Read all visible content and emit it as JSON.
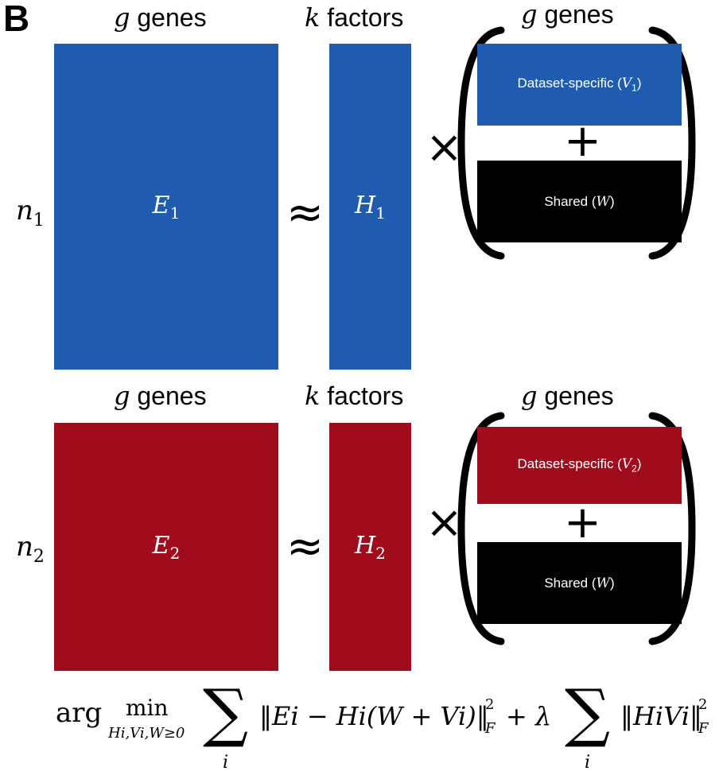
{
  "panel_label": "B",
  "columns": {
    "genes_var": "g",
    "genes_word": "genes",
    "factors_var": "k",
    "factors_word": "factors"
  },
  "rows": [
    {
      "n_var": "n",
      "n_sub": "1",
      "E_var": "E",
      "E_sub": "1",
      "H_var": "H",
      "H_sub": "1",
      "specific_text": "Dataset-specific (",
      "specific_var": "V",
      "specific_sub": "1",
      "specific_close": ")",
      "shared_text": "Shared (",
      "shared_var": "W",
      "shared_close": ")",
      "color": "#1f5cb0"
    },
    {
      "n_var": "n",
      "n_sub": "2",
      "E_var": "E",
      "E_sub": "2",
      "H_var": "H",
      "H_sub": "2",
      "specific_text": "Dataset-specific (",
      "specific_var": "V",
      "specific_sub": "2",
      "specific_close": ")",
      "shared_text": "Shared (",
      "shared_var": "W",
      "shared_close": ")",
      "color": "#a10c1d"
    }
  ],
  "symbols": {
    "approx": "≈",
    "times": "×",
    "plus": "+"
  },
  "objective": {
    "arg": "arg",
    "min": "min",
    "min_sub": "Hi,Vi,W≥0",
    "sum_index": "i",
    "term1": "‖Ei − Hi(W + Vi)‖",
    "term1_sup": "2",
    "term1_sub": "F",
    "plus_lambda": "+ λ",
    "term2": "‖HiVi‖",
    "term2_sup": "2",
    "term2_sub": "F"
  }
}
